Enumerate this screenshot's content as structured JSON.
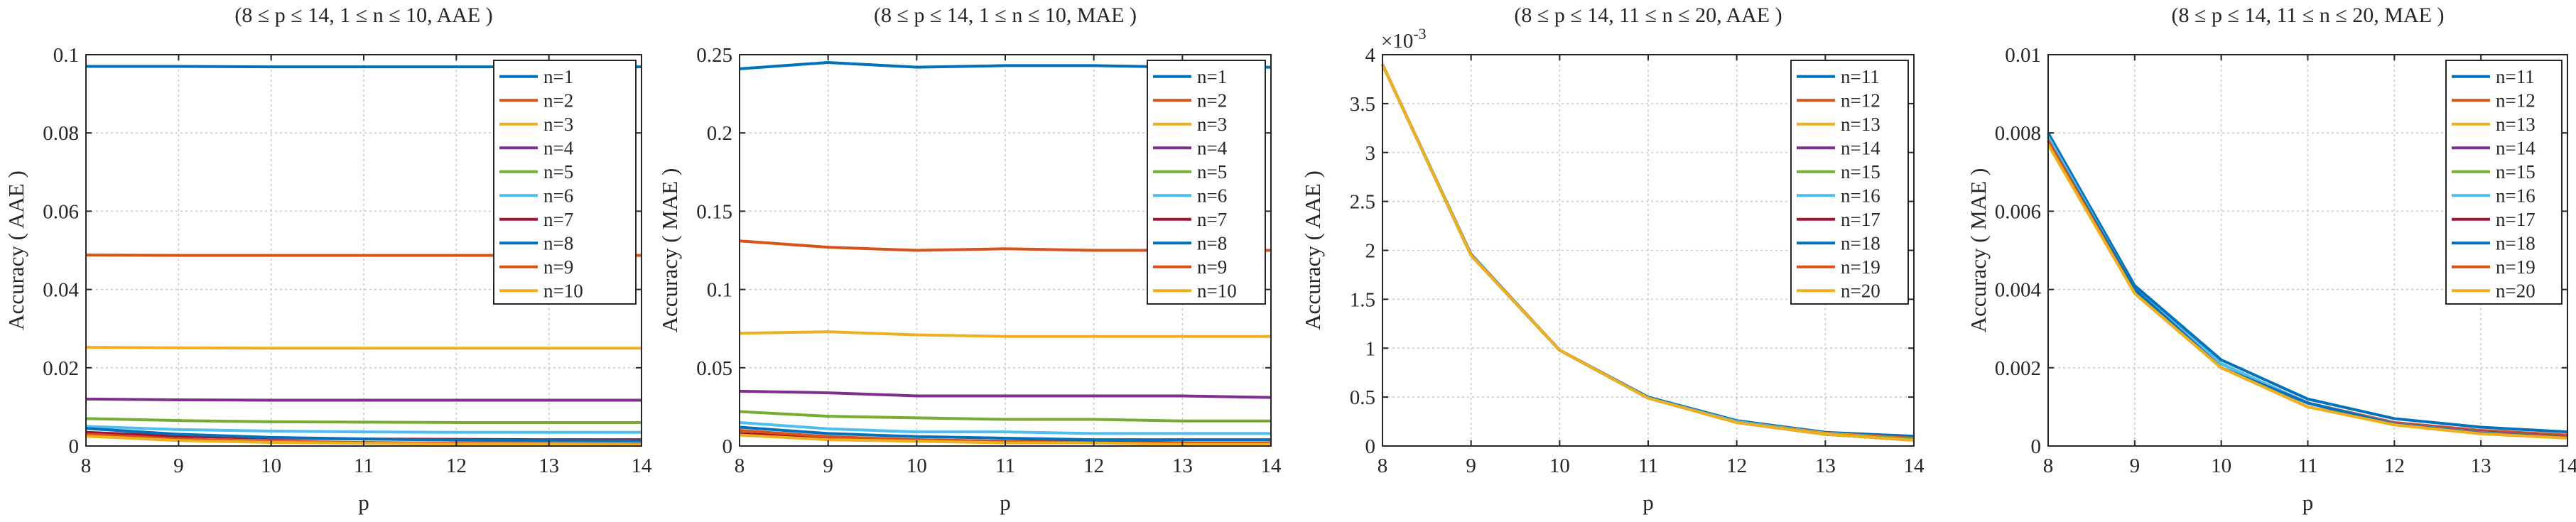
{
  "chart_data": [
    {
      "type": "line",
      "title": "(8 ≤ p ≤ 14, 1 ≤ n ≤ 10, AAE )",
      "xlabel": "p",
      "ylabel": "Accuracy ( AAE )",
      "xlim": [
        8,
        14
      ],
      "ylim": [
        0,
        0.1
      ],
      "x": [
        8,
        9,
        10,
        11,
        12,
        13,
        14
      ],
      "xticks": [
        "8",
        "9",
        "10",
        "11",
        "12",
        "13",
        "14"
      ],
      "yticks": [
        "0",
        "0.02",
        "0.04",
        "0.06",
        "0.08",
        "0.1"
      ],
      "exponent": "",
      "grid": true,
      "legend_position": "top-right",
      "series": [
        {
          "name": "n=1",
          "color": "#0072BD",
          "values": [
            0.097,
            0.097,
            0.0969,
            0.0969,
            0.0969,
            0.0969,
            0.0969
          ]
        },
        {
          "name": "n=2",
          "color": "#D95319",
          "values": [
            0.0488,
            0.0487,
            0.0487,
            0.0487,
            0.0487,
            0.0487,
            0.0487
          ]
        },
        {
          "name": "n=3",
          "color": "#EDB120",
          "values": [
            0.0252,
            0.0251,
            0.025,
            0.025,
            0.025,
            0.025,
            0.025
          ]
        },
        {
          "name": "n=4",
          "color": "#7E2F8E",
          "values": [
            0.012,
            0.0118,
            0.0117,
            0.0117,
            0.0117,
            0.0117,
            0.0117
          ]
        },
        {
          "name": "n=5",
          "color": "#77AC30",
          "values": [
            0.007,
            0.0065,
            0.0062,
            0.0061,
            0.006,
            0.006,
            0.006
          ]
        },
        {
          "name": "n=6",
          "color": "#4DBEEE",
          "values": [
            0.005,
            0.0042,
            0.0038,
            0.0036,
            0.0035,
            0.0035,
            0.0035
          ]
        },
        {
          "name": "n=7",
          "color": "#A2142F",
          "values": [
            0.0035,
            0.0025,
            0.002,
            0.0018,
            0.0017,
            0.0016,
            0.0016
          ]
        },
        {
          "name": "n=8",
          "color": "#0072BD",
          "values": [
            0.0045,
            0.003,
            0.0022,
            0.0018,
            0.0015,
            0.0014,
            0.0013
          ]
        },
        {
          "name": "n=9",
          "color": "#D95319",
          "values": [
            0.003,
            0.0018,
            0.0012,
            0.0009,
            0.0007,
            0.0006,
            0.0005
          ]
        },
        {
          "name": "n=10",
          "color": "#EDB120",
          "values": [
            0.0025,
            0.0014,
            0.0009,
            0.0007,
            0.0005,
            0.0004,
            0.0003
          ]
        }
      ]
    },
    {
      "type": "line",
      "title": "(8 ≤ p ≤ 14, 1 ≤ n ≤ 10, MAE )",
      "xlabel": "p",
      "ylabel": "Accuracy ( MAE )",
      "xlim": [
        8,
        14
      ],
      "ylim": [
        0,
        0.25
      ],
      "x": [
        8,
        9,
        10,
        11,
        12,
        13,
        14
      ],
      "xticks": [
        "8",
        "9",
        "10",
        "11",
        "12",
        "13",
        "14"
      ],
      "yticks": [
        "0",
        "0.05",
        "0.1",
        "0.15",
        "0.2",
        "0.25"
      ],
      "exponent": "",
      "grid": true,
      "legend_position": "top-right",
      "series": [
        {
          "name": "n=1",
          "color": "#0072BD",
          "values": [
            0.241,
            0.245,
            0.242,
            0.243,
            0.243,
            0.242,
            0.242
          ]
        },
        {
          "name": "n=2",
          "color": "#D95319",
          "values": [
            0.131,
            0.127,
            0.125,
            0.126,
            0.125,
            0.125,
            0.125
          ]
        },
        {
          "name": "n=3",
          "color": "#EDB120",
          "values": [
            0.072,
            0.073,
            0.071,
            0.07,
            0.07,
            0.07,
            0.07
          ]
        },
        {
          "name": "n=4",
          "color": "#7E2F8E",
          "values": [
            0.035,
            0.034,
            0.032,
            0.032,
            0.032,
            0.032,
            0.031
          ]
        },
        {
          "name": "n=5",
          "color": "#77AC30",
          "values": [
            0.022,
            0.019,
            0.018,
            0.017,
            0.017,
            0.016,
            0.016
          ]
        },
        {
          "name": "n=6",
          "color": "#4DBEEE",
          "values": [
            0.015,
            0.011,
            0.009,
            0.009,
            0.008,
            0.008,
            0.008
          ]
        },
        {
          "name": "n=7",
          "color": "#A2142F",
          "values": [
            0.008,
            0.005,
            0.004,
            0.003,
            0.003,
            0.002,
            0.002
          ]
        },
        {
          "name": "n=8",
          "color": "#0072BD",
          "values": [
            0.012,
            0.008,
            0.006,
            0.005,
            0.004,
            0.004,
            0.004
          ]
        },
        {
          "name": "n=9",
          "color": "#D95319",
          "values": [
            0.01,
            0.006,
            0.004,
            0.003,
            0.002,
            0.002,
            0.002
          ]
        },
        {
          "name": "n=10",
          "color": "#EDB120",
          "values": [
            0.007,
            0.004,
            0.003,
            0.002,
            0.002,
            0.001,
            0.001
          ]
        }
      ]
    },
    {
      "type": "line",
      "title": "(8 ≤ p ≤ 14, 11 ≤ n ≤ 20, AAE )",
      "xlabel": "p",
      "ylabel": "Accuracy ( AAE )",
      "xlim": [
        8,
        14
      ],
      "ylim": [
        0,
        0.004
      ],
      "x": [
        8,
        9,
        10,
        11,
        12,
        13,
        14
      ],
      "xticks": [
        "8",
        "9",
        "10",
        "11",
        "12",
        "13",
        "14"
      ],
      "yticks": [
        "0",
        "0.5",
        "1",
        "1.5",
        "2",
        "2.5",
        "3",
        "3.5",
        "4"
      ],
      "exponent": "×10",
      "exponent_power": "-3",
      "grid": true,
      "legend_position": "top-right",
      "series": [
        {
          "name": "n=11",
          "color": "#0072BD",
          "values": [
            0.0039,
            0.00196,
            0.00098,
            0.0005,
            0.00026,
            0.00014,
            0.0001
          ]
        },
        {
          "name": "n=12",
          "color": "#D95319",
          "values": [
            0.0039,
            0.00195,
            0.00098,
            0.00049,
            0.00025,
            0.00013,
            8e-05
          ]
        },
        {
          "name": "n=13",
          "color": "#EDB120",
          "values": [
            0.0039,
            0.00195,
            0.00098,
            0.00049,
            0.00025,
            0.00013,
            7e-05
          ]
        },
        {
          "name": "n=14",
          "color": "#7E2F8E",
          "values": [
            0.0039,
            0.00195,
            0.00098,
            0.00049,
            0.00025,
            0.00012,
            7e-05
          ]
        },
        {
          "name": "n=15",
          "color": "#77AC30",
          "values": [
            0.0039,
            0.00195,
            0.00098,
            0.00049,
            0.00025,
            0.00012,
            7e-05
          ]
        },
        {
          "name": "n=16",
          "color": "#4DBEEE",
          "values": [
            0.0039,
            0.00195,
            0.00098,
            0.00049,
            0.00025,
            0.00012,
            6e-05
          ]
        },
        {
          "name": "n=17",
          "color": "#A2142F",
          "values": [
            0.0039,
            0.00195,
            0.00098,
            0.00049,
            0.00024,
            0.00012,
            6e-05
          ]
        },
        {
          "name": "n=18",
          "color": "#0072BD",
          "values": [
            0.0039,
            0.00195,
            0.00098,
            0.00049,
            0.00024,
            0.00012,
            6e-05
          ]
        },
        {
          "name": "n=19",
          "color": "#D95319",
          "values": [
            0.0039,
            0.00195,
            0.00098,
            0.00049,
            0.00024,
            0.00012,
            6e-05
          ]
        },
        {
          "name": "n=20",
          "color": "#EDB120",
          "values": [
            0.0039,
            0.00195,
            0.00098,
            0.00049,
            0.00024,
            0.00012,
            6e-05
          ]
        }
      ]
    },
    {
      "type": "line",
      "title": "(8 ≤ p ≤ 14, 11 ≤ n ≤ 20, MAE )",
      "xlabel": "p",
      "ylabel": "Accuracy ( MAE )",
      "xlim": [
        8,
        14
      ],
      "ylim": [
        0,
        0.01
      ],
      "x": [
        8,
        9,
        10,
        11,
        12,
        13,
        14
      ],
      "xticks": [
        "8",
        "9",
        "10",
        "11",
        "12",
        "13",
        "14"
      ],
      "yticks": [
        "0",
        "0.002",
        "0.004",
        "0.006",
        "0.008",
        "0.01"
      ],
      "exponent": "",
      "grid": true,
      "legend_position": "top-right",
      "series": [
        {
          "name": "n=11",
          "color": "#0072BD",
          "values": [
            0.008,
            0.0041,
            0.0022,
            0.0012,
            0.0007,
            0.00048,
            0.00036
          ]
        },
        {
          "name": "n=12",
          "color": "#D95319",
          "values": [
            0.0079,
            0.004,
            0.0021,
            0.0011,
            0.0006,
            0.0004,
            0.00028
          ]
        },
        {
          "name": "n=13",
          "color": "#EDB120",
          "values": [
            0.0078,
            0.0039,
            0.002,
            0.001,
            0.00055,
            0.00032,
            0.00022
          ]
        },
        {
          "name": "n=14",
          "color": "#7E2F8E",
          "values": [
            0.0079,
            0.004,
            0.0021,
            0.0011,
            0.00058,
            0.00036,
            0.00024
          ]
        },
        {
          "name": "n=15",
          "color": "#77AC30",
          "values": [
            0.0079,
            0.004,
            0.0021,
            0.0011,
            0.00057,
            0.00034,
            0.00023
          ]
        },
        {
          "name": "n=16",
          "color": "#4DBEEE",
          "values": [
            0.0079,
            0.004,
            0.0021,
            0.0011,
            0.00057,
            0.00034,
            0.00022
          ]
        },
        {
          "name": "n=17",
          "color": "#A2142F",
          "values": [
            0.0078,
            0.004,
            0.002,
            0.0011,
            0.00056,
            0.00033,
            0.00022
          ]
        },
        {
          "name": "n=18",
          "color": "#0072BD",
          "values": [
            0.0078,
            0.004,
            0.002,
            0.0011,
            0.00056,
            0.00033,
            0.00021
          ]
        },
        {
          "name": "n=19",
          "color": "#D95319",
          "values": [
            0.0078,
            0.0039,
            0.002,
            0.001,
            0.00055,
            0.00032,
            0.00021
          ]
        },
        {
          "name": "n=20",
          "color": "#EDB120",
          "values": [
            0.0077,
            0.0039,
            0.002,
            0.001,
            0.00054,
            0.00031,
            0.0002
          ]
        }
      ]
    }
  ]
}
